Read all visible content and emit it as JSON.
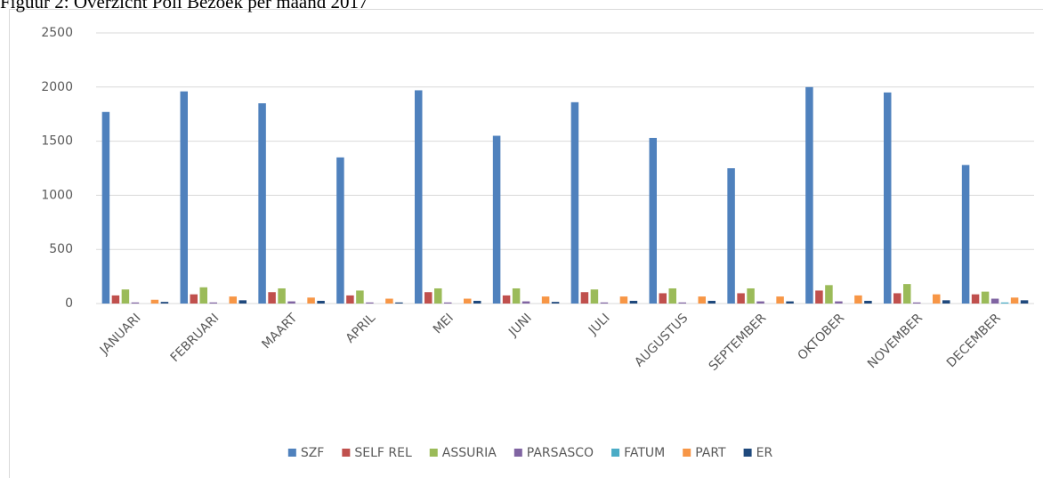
{
  "chart_data": {
    "type": "bar",
    "title": "Figuur 2: Overzicht Poli Bezoek per maand 2017",
    "categories": [
      "JANUARI",
      "FEBRUARI",
      "MAART",
      "APRIL",
      "MEI",
      "JUNI",
      "JULI",
      "AUGUSTUS",
      "SEPTEMBER",
      "OKTOBER",
      "NOVEMBER",
      "DECEMBER"
    ],
    "series": [
      {
        "name": "SZF",
        "color": "#4f81bd",
        "values": [
          1770,
          1960,
          1850,
          1350,
          1970,
          1550,
          1860,
          1530,
          1250,
          2000,
          1950,
          1280
        ]
      },
      {
        "name": "SELF REL",
        "color": "#c0504d",
        "values": [
          75,
          85,
          105,
          75,
          105,
          75,
          105,
          95,
          95,
          120,
          95,
          85
        ]
      },
      {
        "name": "ASSURIA",
        "color": "#9bbb59",
        "values": [
          130,
          150,
          140,
          120,
          140,
          140,
          130,
          140,
          140,
          170,
          180,
          110
        ]
      },
      {
        "name": "PARSASCO",
        "color": "#8064a2",
        "values": [
          10,
          10,
          20,
          10,
          10,
          20,
          10,
          10,
          20,
          20,
          10,
          45
        ]
      },
      {
        "name": "FATUM",
        "color": "#4bacc6",
        "values": [
          0,
          0,
          0,
          0,
          0,
          0,
          0,
          0,
          0,
          0,
          0,
          10
        ]
      },
      {
        "name": "PART",
        "color": "#f79646",
        "values": [
          35,
          65,
          55,
          45,
          45,
          65,
          65,
          65,
          65,
          75,
          85,
          55
        ]
      },
      {
        "name": "ER",
        "color": "#1f497d",
        "values": [
          15,
          30,
          25,
          10,
          25,
          15,
          25,
          25,
          20,
          25,
          30,
          30
        ]
      }
    ],
    "ylim": [
      0,
      2500
    ],
    "yticks": [
      0,
      500,
      1000,
      1500,
      2000,
      2500
    ],
    "grid": true,
    "legend": "bottom"
  }
}
